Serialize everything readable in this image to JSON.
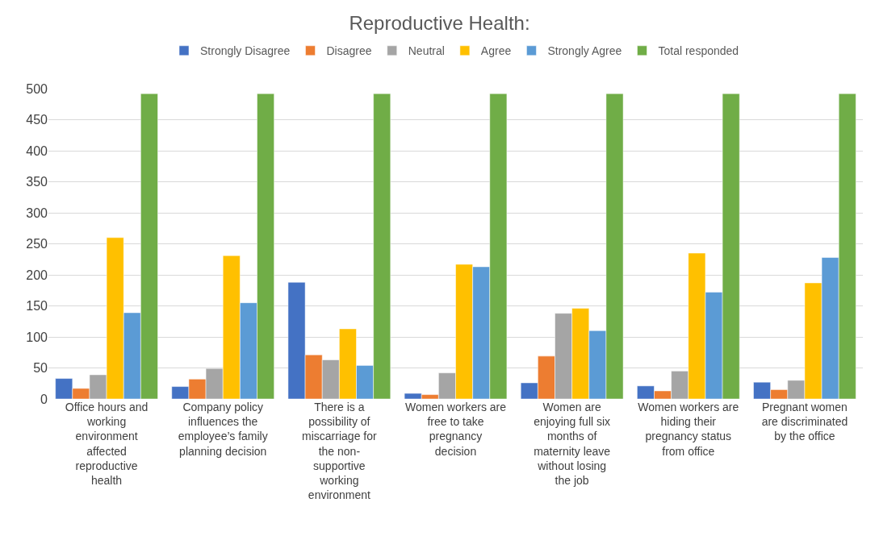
{
  "chart_data": {
    "type": "bar",
    "title": "Reproductive Health:",
    "categories": [
      "Office hours and working environment affected reproductive health",
      "Company policy influences the employee’s family planning decision",
      "There is a possibility of miscarriage for the non-supportive working environment",
      "Women workers are free to take pregnancy decision",
      "Women are enjoying full six months of maternity leave without losing the job",
      "Women workers are hiding their pregnancy status from office",
      "Pregnant women are discriminated by the office"
    ],
    "series": [
      {
        "name": "Strongly Disagree",
        "color": "#4472c4",
        "values": [
          33,
          20,
          188,
          9,
          26,
          21,
          27
        ]
      },
      {
        "name": "Disagree",
        "color": "#ed7d31",
        "values": [
          17,
          32,
          71,
          7,
          69,
          13,
          15
        ]
      },
      {
        "name": "Neutral",
        "color": "#a5a5a5",
        "values": [
          39,
          49,
          63,
          42,
          138,
          45,
          30
        ]
      },
      {
        "name": "Agree",
        "color": "#ffc000",
        "values": [
          260,
          231,
          113,
          217,
          146,
          235,
          187
        ]
      },
      {
        "name": "Strongly Agree",
        "color": "#5b9bd5",
        "values": [
          139,
          155,
          54,
          213,
          110,
          172,
          228
        ]
      },
      {
        "name": "Total responded",
        "color": "#70ad47",
        "values": [
          492,
          492,
          492,
          492,
          492,
          492,
          492
        ]
      }
    ],
    "ylim": [
      0,
      500
    ],
    "yticks": [
      0,
      50,
      100,
      150,
      200,
      250,
      300,
      350,
      400,
      450,
      500
    ],
    "grid": "y",
    "legend": "top"
  }
}
